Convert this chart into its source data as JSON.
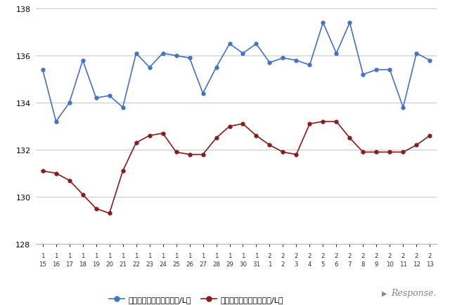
{
  "x_labels_row1": [
    "1",
    "1",
    "1",
    "1",
    "1",
    "1",
    "1",
    "1",
    "1",
    "1",
    "1",
    "1",
    "1",
    "1",
    "1",
    "1",
    "1",
    "2",
    "2",
    "2",
    "2",
    "2",
    "2",
    "2",
    "2",
    "2",
    "2",
    "2",
    "2",
    "2"
  ],
  "x_labels_row2": [
    "15",
    "16",
    "17",
    "18",
    "19",
    "20",
    "21",
    "22",
    "23",
    "24",
    "25",
    "26",
    "27",
    "28",
    "29",
    "30",
    "31",
    "1",
    "2",
    "3",
    "4",
    "5",
    "6",
    "7",
    "8",
    "9",
    "10",
    "11",
    "12",
    "13"
  ],
  "blue_values": [
    135.4,
    133.2,
    134.0,
    135.8,
    134.2,
    134.3,
    133.8,
    136.1,
    135.5,
    136.1,
    136.0,
    135.9,
    134.4,
    135.5,
    136.5,
    136.1,
    136.5,
    135.7,
    135.9,
    135.8,
    135.6,
    137.4,
    136.1,
    137.4,
    135.2,
    135.4,
    135.4,
    133.8,
    136.1,
    135.8
  ],
  "red_values": [
    131.1,
    131.0,
    130.7,
    130.1,
    129.5,
    129.3,
    131.1,
    132.3,
    132.6,
    132.7,
    131.9,
    131.8,
    131.8,
    132.5,
    133.0,
    133.1,
    132.6,
    132.2,
    131.9,
    131.8,
    133.1,
    133.2,
    133.2,
    132.5,
    131.9,
    131.9,
    131.9,
    131.9,
    132.2,
    132.6
  ],
  "ylim": [
    128,
    138
  ],
  "yticks": [
    128,
    130,
    132,
    134,
    136,
    138
  ],
  "blue_color": "#4472C4",
  "red_color": "#8B1A1A",
  "blue_label": "レギュラー看板価格（円/L）",
  "red_label": "レギュラー実売価格（円/L）",
  "background_color": "#ffffff",
  "grid_color": "#c8c8c8",
  "response_text": "Response.",
  "figwidth": 6.4,
  "figheight": 4.35,
  "dpi": 100
}
